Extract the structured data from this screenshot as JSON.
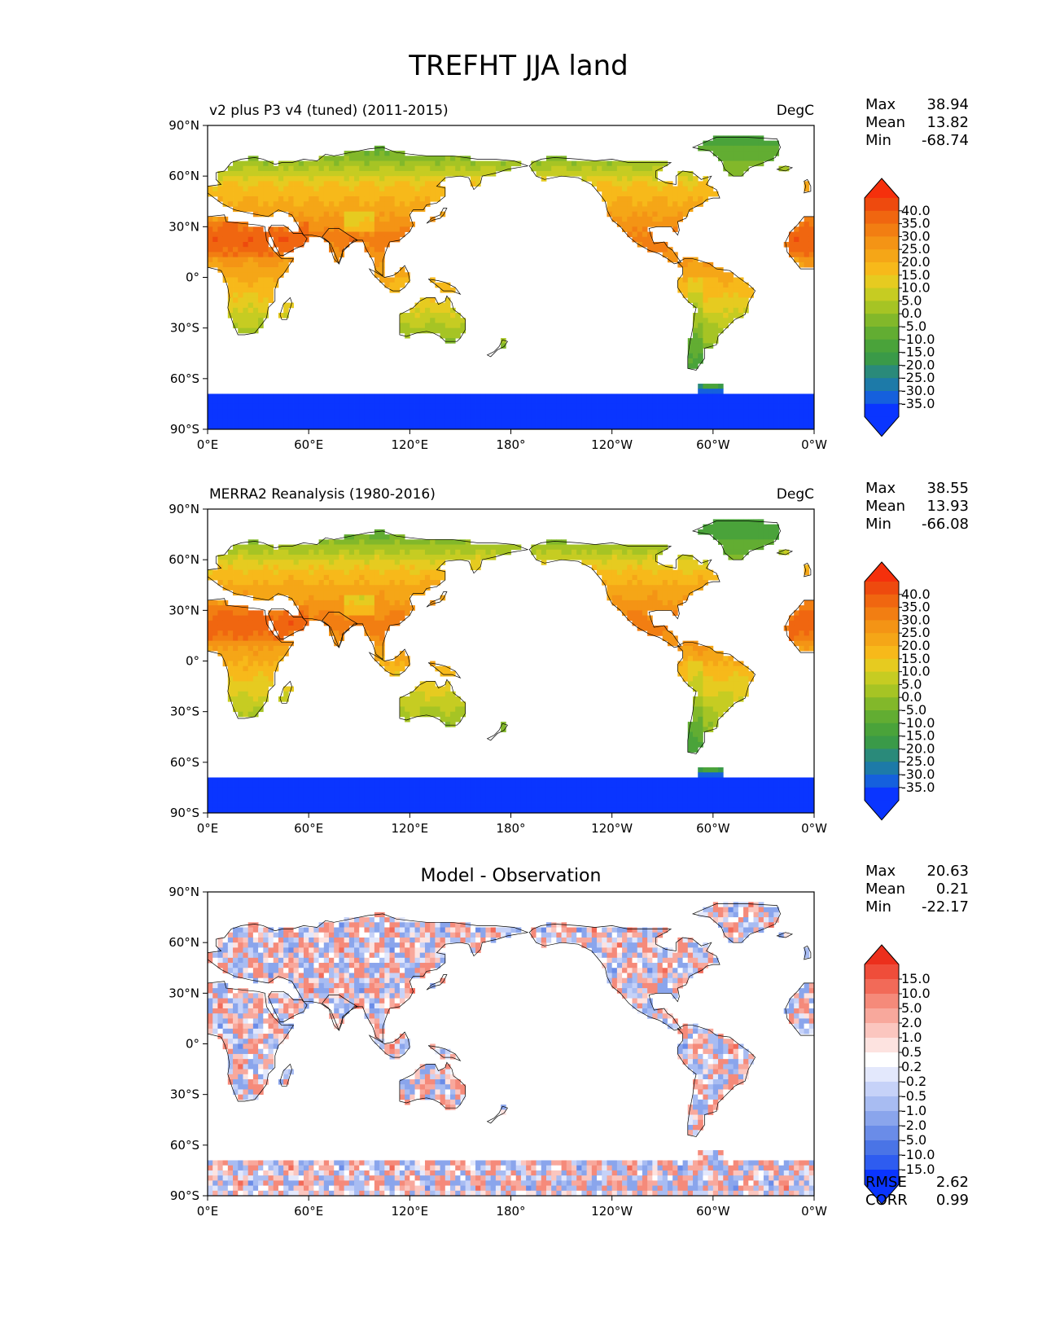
{
  "title": "TREFHT JJA land",
  "colors": {
    "ocean": "#ffffff",
    "coast": "#000000",
    "warm_colormap": [
      "#0a35ff",
      "#0a35ff",
      "#1560dd",
      "#1d7aa8",
      "#2a8a7a",
      "#3a9a48",
      "#4aa33a",
      "#62ad32",
      "#82b82a",
      "#a6c424",
      "#c6cc22",
      "#e6cb20",
      "#f7b91a",
      "#f5a617",
      "#f49415",
      "#f27e12",
      "#f06610",
      "#ee4a0e",
      "#f5300c"
    ],
    "diff_colormap": [
      "#0a35ff",
      "#2e5cf0",
      "#4a74e6",
      "#6a8ce8",
      "#8aa5ec",
      "#a8bcf2",
      "#c6d2f8",
      "#e3e8fc",
      "#ffffff",
      "#fde3e0",
      "#fbc6bf",
      "#f8a89c",
      "#f58a7a",
      "#f26a58",
      "#ef4d3a",
      "#ec2f1c"
    ]
  },
  "chart_data": [
    {
      "type": "heatmap",
      "subtitle": "v2 plus P3 v4 (tuned) (2011-2015)",
      "units": "DegC",
      "stats": [
        {
          "label": "Max",
          "value": "38.94"
        },
        {
          "label": "Mean",
          "value": "13.82"
        },
        {
          "label": "Min",
          "value": "-68.74"
        }
      ],
      "colorbar_ticks": [
        "40.0",
        "35.0",
        "30.0",
        "25.0",
        "20.0",
        "15.0",
        "10.0",
        "5.0",
        "0.0",
        "-5.0",
        "-10.0",
        "-15.0",
        "-20.0",
        "-25.0",
        "-30.0",
        "-35.0"
      ],
      "colormap": "warm",
      "field": "model",
      "xlabels": [
        "0°E",
        "60°E",
        "120°E",
        "180°",
        "120°W",
        "60°W",
        "0°W"
      ],
      "ylabels": [
        "90°N",
        "60°N",
        "30°N",
        "0°",
        "30°S",
        "60°S",
        "90°S"
      ],
      "lon_range": [
        0,
        360
      ],
      "lat_range": [
        -90,
        90
      ]
    },
    {
      "type": "heatmap",
      "subtitle": "MERRA2 Reanalysis (1980-2016)",
      "units": "DegC",
      "stats": [
        {
          "label": "Max",
          "value": "38.55"
        },
        {
          "label": "Mean",
          "value": "13.93"
        },
        {
          "label": "Min",
          "value": "-66.08"
        }
      ],
      "colorbar_ticks": [
        "40.0",
        "35.0",
        "30.0",
        "25.0",
        "20.0",
        "15.0",
        "10.0",
        "5.0",
        "0.0",
        "-5.0",
        "-10.0",
        "-15.0",
        "-20.0",
        "-25.0",
        "-30.0",
        "-35.0"
      ],
      "colormap": "warm",
      "field": "obs",
      "xlabels": [
        "0°E",
        "60°E",
        "120°E",
        "180°",
        "120°W",
        "60°W",
        "0°W"
      ],
      "ylabels": [
        "90°N",
        "60°N",
        "30°N",
        "0°",
        "30°S",
        "60°S",
        "90°S"
      ],
      "lon_range": [
        0,
        360
      ],
      "lat_range": [
        -90,
        90
      ]
    },
    {
      "type": "heatmap",
      "title": "Model - Observation",
      "stats": [
        {
          "label": "Max",
          "value": "20.63"
        },
        {
          "label": "Mean",
          "value": "0.21"
        },
        {
          "label": "Min",
          "value": "-22.17"
        }
      ],
      "colorbar_ticks": [
        "15.0",
        "10.0",
        "5.0",
        "2.0",
        "1.0",
        "0.5",
        "0.2",
        "-0.2",
        "-0.5",
        "-1.0",
        "-2.0",
        "-5.0",
        "-10.0",
        "-15.0"
      ],
      "colormap": "diff",
      "field": "diff",
      "xlabels": [
        "0°E",
        "60°E",
        "120°E",
        "180°",
        "120°W",
        "60°W",
        "0°W"
      ],
      "ylabels": [
        "90°N",
        "60°N",
        "30°N",
        "0°",
        "30°S",
        "60°S",
        "90°S"
      ],
      "lon_range": [
        0,
        360
      ],
      "lat_range": [
        -90,
        90
      ],
      "metrics": [
        {
          "label": "RMSE",
          "value": "2.62"
        },
        {
          "label": "CORR",
          "value": "0.99"
        }
      ]
    }
  ]
}
